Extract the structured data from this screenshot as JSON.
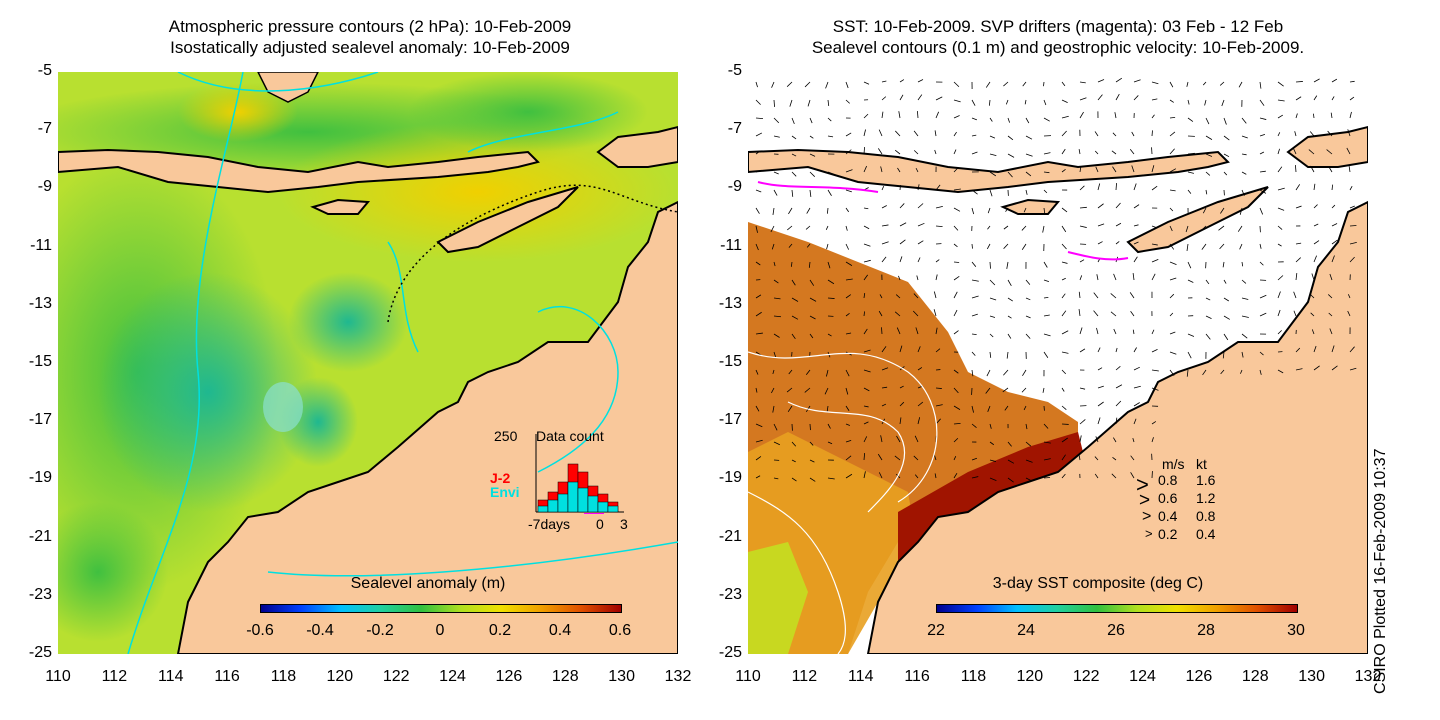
{
  "left_panel": {
    "title_line1": "Atmospheric pressure contours (2 hPa): 10-Feb-2009",
    "title_line2": "Isostatically adjusted sealevel anomaly: 10-Feb-2009",
    "colorbar": {
      "label": "Sealevel anomaly (m)",
      "ticks": [
        "-0.6",
        "-0.4",
        "-0.2",
        "0",
        "0.2",
        "0.4",
        "0.6"
      ],
      "range": [
        -0.6,
        0.6
      ]
    },
    "data_count": {
      "title": "Data count",
      "max_label": "250",
      "series": [
        {
          "name": "J-2",
          "color": "#ff0000"
        },
        {
          "name": "Envi",
          "color": "#00e0e0"
        }
      ],
      "x_labels": [
        "-7days",
        "0",
        "3"
      ]
    }
  },
  "right_panel": {
    "title_line1": "SST: 10-Feb-2009. SVP drifters (magenta): 03 Feb - 12 Feb",
    "title_line2": "Sealevel contours (0.1 m) and geostrophic velocity: 10-Feb-2009.",
    "colorbar": {
      "label": "3-day SST composite (deg C)",
      "ticks": [
        "22",
        "24",
        "26",
        "28",
        "30"
      ],
      "range": [
        22,
        30
      ]
    },
    "velocity_legend": {
      "header_ms": "m/s",
      "header_kt": "kt",
      "rows": [
        {
          "ms": "0.8",
          "kt": "1.6"
        },
        {
          "ms": "0.6",
          "kt": "1.2"
        },
        {
          "ms": "0.4",
          "kt": "0.8"
        },
        {
          "ms": "0.2",
          "kt": "0.4"
        }
      ]
    }
  },
  "axes": {
    "y_ticks": [
      "-5",
      "-7",
      "-9",
      "-11",
      "-13",
      "-15",
      "-17",
      "-19",
      "-21",
      "-23",
      "-25"
    ],
    "x_ticks": [
      "110",
      "112",
      "114",
      "116",
      "118",
      "120",
      "122",
      "124",
      "126",
      "128",
      "130",
      "132"
    ],
    "lon_range": [
      110,
      132
    ],
    "lat_range": [
      -25,
      -5
    ]
  },
  "credit": "CSIRO Plotted 16-Feb-2009 10:37",
  "colors": {
    "land": "#f9c89b",
    "contour_cyan": "#00e0e0",
    "drifter_magenta": "#ff00ff"
  }
}
